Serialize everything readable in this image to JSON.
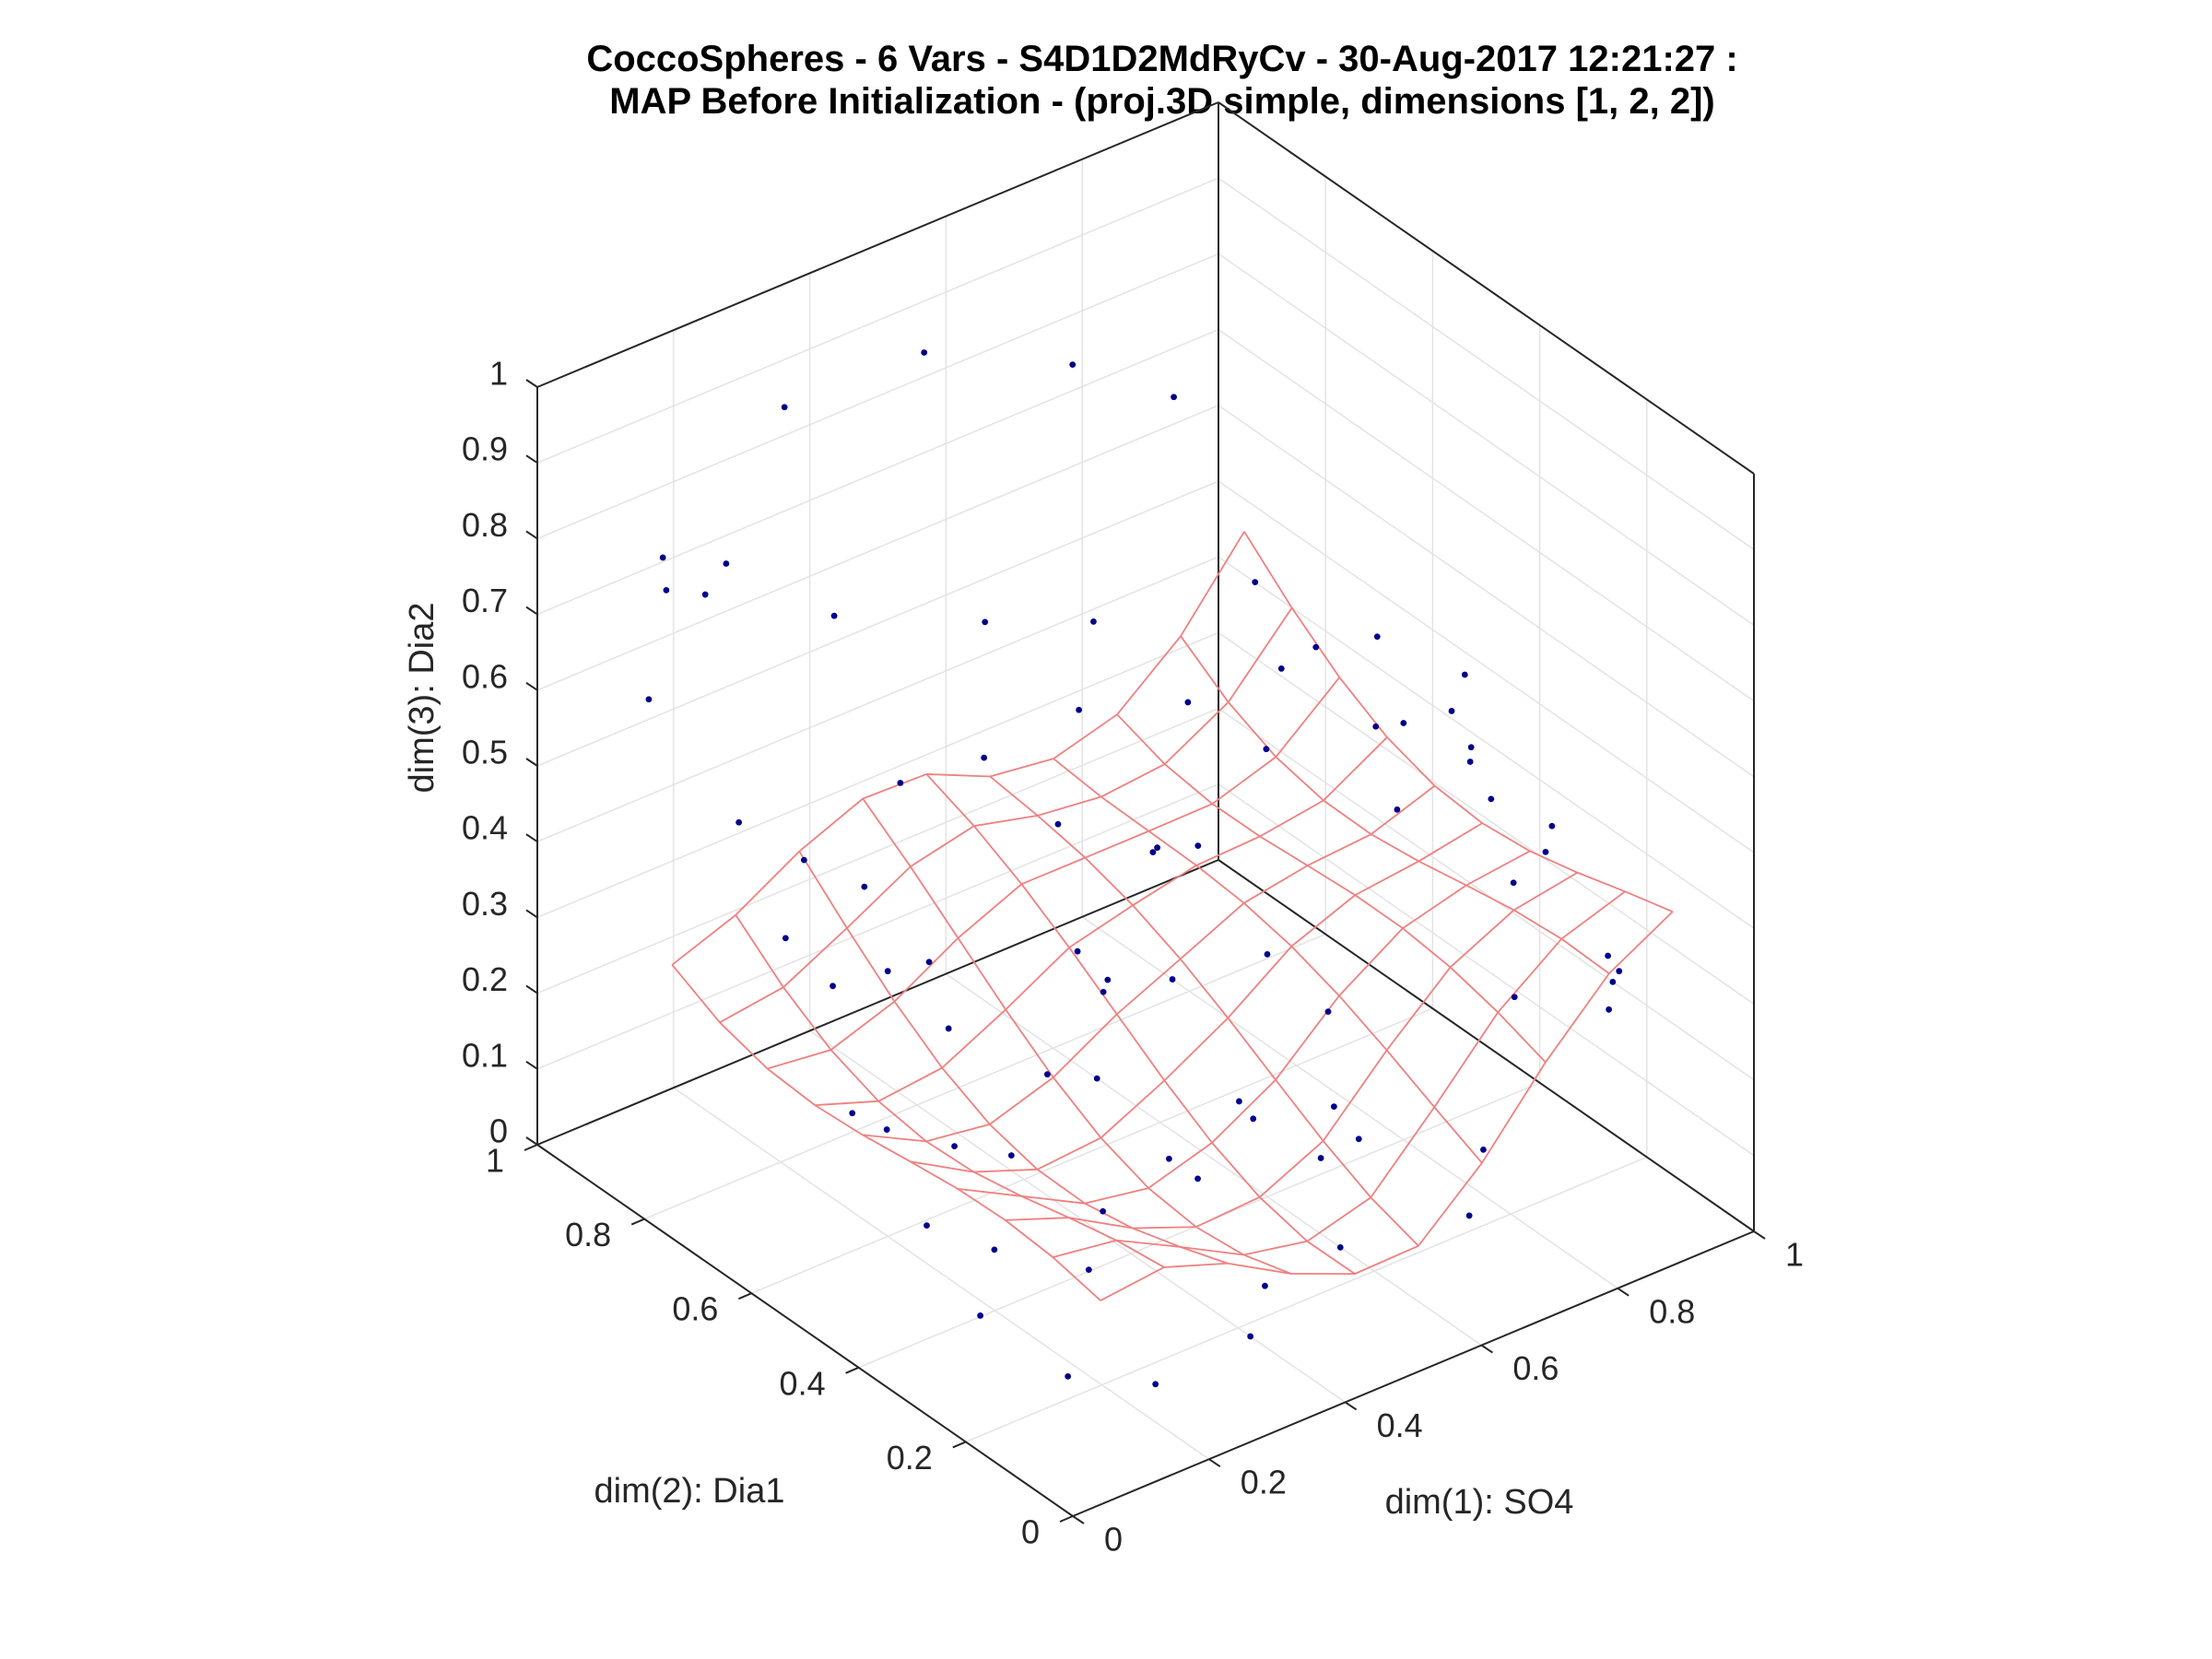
{
  "chart_data": {
    "type": "scatter",
    "title": [
      "CoccoSpheres - 6 Vars - S4D1D2MdRyCv - 30-Aug-2017 12:21:27 :",
      "MAP Before Initialization - (proj.3D simple, dimensions [1, 2, 2])"
    ],
    "xlabel": "dim(1): SO4",
    "ylabel": "dim(2): Dia1",
    "zlabel": "dim(3): Dia2",
    "xlim": [
      0,
      1
    ],
    "ylim": [
      0,
      1
    ],
    "zlim": [
      0,
      1
    ],
    "xticks": [
      0,
      0.2,
      0.4,
      0.6,
      0.8,
      1
    ],
    "xtick_labels": [
      "0",
      "0.2",
      "0.4",
      "0.6",
      "0.8",
      "1"
    ],
    "yticks": [
      0,
      0.2,
      0.4,
      0.6,
      0.8,
      1
    ],
    "ytick_labels": [
      "0",
      "0.2",
      "0.4",
      "0.6",
      "0.8",
      "1"
    ],
    "zticks": [
      0,
      0.1,
      0.2,
      0.3,
      0.4,
      0.5,
      0.6,
      0.7,
      0.8,
      0.9,
      1
    ],
    "ztick_labels": [
      "0",
      "0.1",
      "0.2",
      "0.3",
      "0.4",
      "0.5",
      "0.6",
      "0.7",
      "0.8",
      "0.9",
      "1"
    ],
    "grid": true,
    "colors": {
      "points": "#00008b",
      "map_mesh": "#f08080",
      "axes": "#262626",
      "grid": "#e3e3e3"
    },
    "series": [
      {
        "marker": "dot",
        "points": [
          [
            0.09,
            0.88,
            0.8
          ],
          [
            0.12,
            0.8,
            0.82
          ],
          [
            0.05,
            0.75,
            0.83
          ],
          [
            0.15,
            0.95,
            0.7
          ],
          [
            0.03,
            0.83,
            0.66
          ],
          [
            0.2,
            0.7,
            0.77
          ],
          [
            0.97,
            1.0,
            0.03
          ],
          [
            0.45,
            0.85,
            0.95
          ],
          [
            0.55,
            0.7,
            0.97
          ],
          [
            0.62,
            0.6,
            0.95
          ],
          [
            0.3,
            0.92,
            0.9
          ],
          [
            0.8,
            0.4,
            0.55
          ],
          [
            0.85,
            0.3,
            0.48
          ],
          [
            0.9,
            0.25,
            0.45
          ],
          [
            0.72,
            0.35,
            0.6
          ],
          [
            0.92,
            0.15,
            0.3
          ],
          [
            0.88,
            0.12,
            0.35
          ],
          [
            0.95,
            0.2,
            0.25
          ],
          [
            0.7,
            0.55,
            0.7
          ],
          [
            0.75,
            0.5,
            0.62
          ],
          [
            0.66,
            0.45,
            0.65
          ],
          [
            0.78,
            0.25,
            0.58
          ],
          [
            0.83,
            0.45,
            0.4
          ],
          [
            0.6,
            0.3,
            0.1
          ],
          [
            0.55,
            0.2,
            0.05
          ],
          [
            0.4,
            0.15,
            0.08
          ],
          [
            0.3,
            0.05,
            0.1
          ],
          [
            0.2,
            0.1,
            0.05
          ],
          [
            0.15,
            0.2,
            0.03
          ],
          [
            0.7,
            0.15,
            0.06
          ],
          [
            0.35,
            0.4,
            0.25
          ],
          [
            0.4,
            0.5,
            0.35
          ],
          [
            0.5,
            0.45,
            0.3
          ],
          [
            0.55,
            0.55,
            0.4
          ],
          [
            0.45,
            0.6,
            0.45
          ],
          [
            0.25,
            0.55,
            0.28
          ],
          [
            0.3,
            0.65,
            0.3
          ],
          [
            0.2,
            0.6,
            0.35
          ],
          [
            0.18,
            0.45,
            0.2
          ],
          [
            0.12,
            0.5,
            0.22
          ],
          [
            0.1,
            0.4,
            0.15
          ],
          [
            0.08,
            0.55,
            0.4
          ],
          [
            0.05,
            0.6,
            0.45
          ],
          [
            0.03,
            0.45,
            0.3
          ],
          [
            0.6,
            0.4,
            0.32
          ],
          [
            0.65,
            0.35,
            0.25
          ],
          [
            0.58,
            0.25,
            0.2
          ],
          [
            0.48,
            0.3,
            0.22
          ],
          [
            0.38,
            0.25,
            0.18
          ],
          [
            0.28,
            0.3,
            0.15
          ],
          [
            0.22,
            0.25,
            0.12
          ],
          [
            0.32,
            0.35,
            0.4
          ],
          [
            0.42,
            0.7,
            0.5
          ],
          [
            0.52,
            0.65,
            0.55
          ],
          [
            0.62,
            0.75,
            0.58
          ],
          [
            0.5,
            0.8,
            0.6
          ],
          [
            0.36,
            0.78,
            0.45
          ],
          [
            0.26,
            0.72,
            0.38
          ],
          [
            0.14,
            0.68,
            0.48
          ],
          [
            0.06,
            0.7,
            0.55
          ],
          [
            0.68,
            0.65,
            0.5
          ],
          [
            0.74,
            0.58,
            0.45
          ],
          [
            0.58,
            0.58,
            0.38
          ],
          [
            0.46,
            0.52,
            0.28
          ],
          [
            0.34,
            0.48,
            0.22
          ],
          [
            0.24,
            0.42,
            0.18
          ],
          [
            0.16,
            0.35,
            0.12
          ],
          [
            0.1,
            0.3,
            0.08
          ],
          [
            0.44,
            0.38,
            0.12
          ],
          [
            0.54,
            0.35,
            0.15
          ],
          [
            0.64,
            0.28,
            0.12
          ],
          [
            0.76,
            0.2,
            0.1
          ],
          [
            0.86,
            0.35,
            0.52
          ],
          [
            0.93,
            0.3,
            0.38
          ],
          [
            0.96,
            0.22,
            0.2
          ],
          [
            0.82,
            0.22,
            0.42
          ],
          [
            0.79,
            0.18,
            0.3
          ],
          [
            0.89,
            0.4,
            0.58
          ],
          [
            0.84,
            0.5,
            0.6
          ],
          [
            0.91,
            0.45,
            0.5
          ]
        ]
      }
    ]
  }
}
